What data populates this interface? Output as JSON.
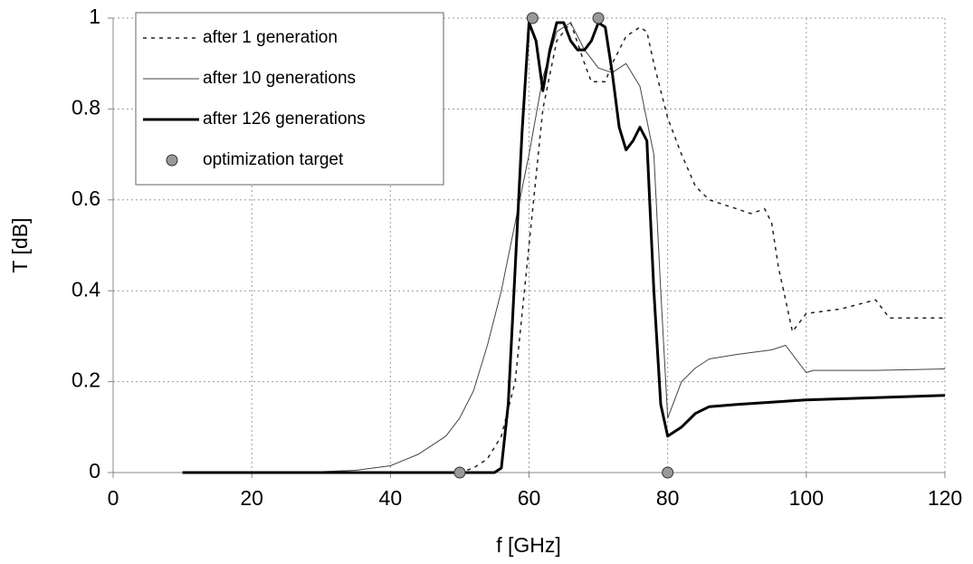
{
  "chart_data": {
    "type": "line",
    "xlabel": "f [GHz]",
    "ylabel": "T [dB]",
    "xlim": [
      0,
      120
    ],
    "ylim": [
      0,
      1
    ],
    "xticks": [
      0,
      20,
      40,
      60,
      80,
      100,
      120
    ],
    "yticks": [
      0,
      0.2,
      0.4,
      0.6,
      0.8,
      1
    ],
    "grid": true,
    "legend": "upper-left",
    "series": [
      {
        "name": "after 1 generation",
        "color": "#222222",
        "style": "dotted",
        "width": 1.5,
        "x": [
          10,
          50,
          52,
          54,
          56,
          58,
          60,
          62,
          64,
          66,
          68,
          69,
          71,
          72,
          74,
          76,
          77,
          78,
          80,
          82,
          84,
          86,
          88,
          90,
          92,
          94,
          95,
          96,
          97,
          98,
          99,
          100,
          105,
          110,
          112,
          115,
          120
        ],
        "values": [
          0,
          0,
          0.01,
          0.03,
          0.08,
          0.2,
          0.5,
          0.8,
          0.95,
          0.99,
          0.9,
          0.86,
          0.86,
          0.9,
          0.96,
          0.98,
          0.97,
          0.9,
          0.78,
          0.7,
          0.63,
          0.6,
          0.59,
          0.58,
          0.57,
          0.58,
          0.55,
          0.45,
          0.38,
          0.31,
          0.33,
          0.35,
          0.36,
          0.38,
          0.34,
          0.34,
          0.34
        ]
      },
      {
        "name": "after 10 generations",
        "color": "#444444",
        "style": "solid",
        "width": 1,
        "x": [
          10,
          30,
          35,
          40,
          44,
          48,
          50,
          52,
          54,
          56,
          58,
          60,
          62,
          64,
          66,
          68,
          70,
          72,
          74,
          76,
          78,
          79,
          80,
          82,
          84,
          86,
          90,
          95,
          97,
          98,
          100,
          101,
          110,
          120
        ],
        "values": [
          0,
          0.002,
          0.005,
          0.015,
          0.04,
          0.08,
          0.12,
          0.18,
          0.28,
          0.4,
          0.55,
          0.7,
          0.87,
          0.97,
          0.99,
          0.93,
          0.89,
          0.88,
          0.9,
          0.85,
          0.7,
          0.4,
          0.12,
          0.2,
          0.23,
          0.25,
          0.26,
          0.27,
          0.28,
          0.26,
          0.22,
          0.225,
          0.225,
          0.228
        ]
      },
      {
        "name": "after 126 generations",
        "color": "#000000",
        "style": "solid",
        "width": 3,
        "x": [
          10,
          55,
          56,
          57,
          58,
          59,
          60,
          61,
          62,
          63,
          64,
          65,
          66,
          67,
          68,
          69,
          70,
          71,
          72,
          73,
          74,
          75,
          76,
          77,
          78,
          79,
          80,
          82,
          84,
          86,
          90,
          95,
          100,
          110,
          120
        ],
        "values": [
          0,
          0,
          0.01,
          0.15,
          0.45,
          0.75,
          0.99,
          0.95,
          0.84,
          0.93,
          0.99,
          0.99,
          0.95,
          0.93,
          0.93,
          0.95,
          0.99,
          0.98,
          0.88,
          0.76,
          0.71,
          0.73,
          0.76,
          0.73,
          0.4,
          0.15,
          0.08,
          0.1,
          0.13,
          0.145,
          0.15,
          0.155,
          0.16,
          0.165,
          0.17
        ]
      },
      {
        "name": "optimization target",
        "color": "#999999",
        "style": "marker",
        "x": [
          50,
          60.5,
          70,
          80
        ],
        "values": [
          0,
          1,
          1,
          0
        ]
      }
    ]
  }
}
